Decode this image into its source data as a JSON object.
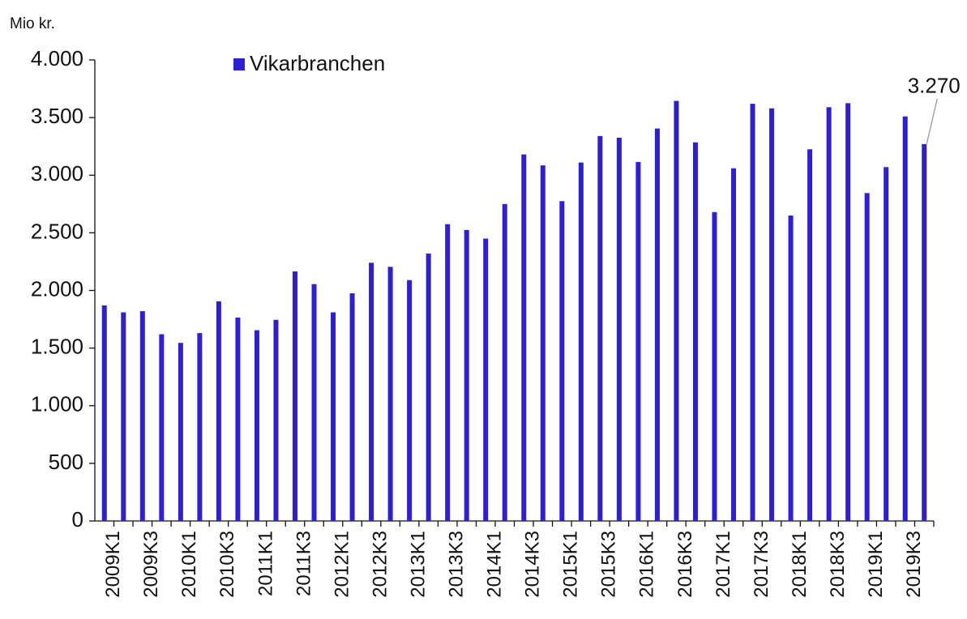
{
  "chart_data": {
    "type": "bar",
    "y_axis_label": "Mio kr.",
    "categories": [
      "2009K1",
      null,
      "2009K3",
      null,
      "2010K1",
      null,
      "2010K3",
      null,
      "2011K1",
      null,
      "2011K3",
      null,
      "2012K1",
      null,
      "2012K3",
      null,
      "2013K1",
      null,
      "2013K3",
      null,
      "2014K1",
      null,
      "2014K3",
      null,
      "2015K1",
      null,
      "2015K3",
      null,
      "2016K1",
      null,
      "2016K3",
      null,
      "2017K1",
      null,
      "2017K3",
      null,
      "2018K1",
      null,
      "2018K3",
      null,
      "2019K1",
      null,
      "2019K3",
      null
    ],
    "series": [
      {
        "name": "Vikarbranchen",
        "color": "#2e1fd6",
        "values": [
          1870,
          1810,
          1820,
          1620,
          1545,
          1630,
          1905,
          1765,
          1655,
          1745,
          2165,
          2055,
          1810,
          1975,
          2240,
          2205,
          2090,
          2320,
          2575,
          2525,
          2450,
          2750,
          3180,
          3085,
          2775,
          3110,
          3340,
          3325,
          3115,
          3405,
          3645,
          3285,
          2680,
          3060,
          3620,
          3580,
          2650,
          3225,
          3590,
          3625,
          2845,
          3070,
          3510,
          3270
        ],
        "value_labels": [
          null,
          null,
          null,
          null,
          null,
          null,
          null,
          null,
          null,
          null,
          null,
          null,
          null,
          null,
          null,
          null,
          null,
          null,
          null,
          null,
          null,
          null,
          null,
          null,
          null,
          null,
          null,
          null,
          null,
          null,
          null,
          null,
          null,
          null,
          null,
          null,
          null,
          null,
          null,
          null,
          null,
          null,
          null,
          "3.270"
        ]
      }
    ],
    "ylim": [
      0,
      4000
    ],
    "yticks": [
      0,
      500,
      {
        "value": 1000,
        "label": "1.000"
      },
      {
        "value": 1500,
        "label": "1.500"
      },
      {
        "value": 2000,
        "label": "2.000"
      },
      {
        "value": 2500,
        "label": "2.500"
      },
      {
        "value": 3000,
        "label": "3.000"
      },
      {
        "value": 3500,
        "label": "3.500"
      },
      {
        "value": 4000,
        "label": "4.000"
      }
    ],
    "grid": false,
    "legend": "top-left"
  }
}
